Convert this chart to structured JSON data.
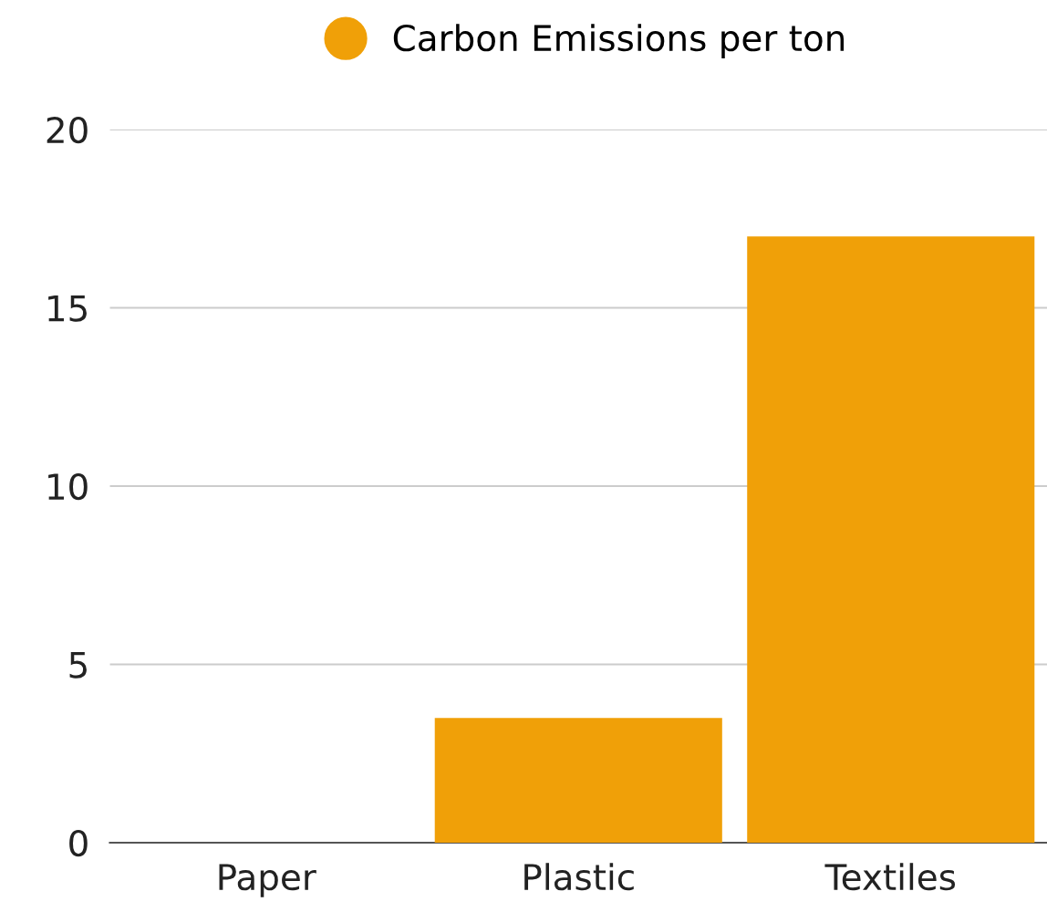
{
  "chart_data": {
    "type": "bar",
    "categories": [
      "Paper",
      "Plastic",
      "Textiles"
    ],
    "series": [
      {
        "name": "Carbon Emissions per ton",
        "color": "#f0a008",
        "values": [
          0,
          3.5,
          17
        ]
      }
    ],
    "ylim": [
      0,
      20
    ],
    "yticks": [
      0,
      5,
      10,
      15,
      20
    ],
    "grid": "y",
    "legend": "top",
    "marker": "circle"
  }
}
